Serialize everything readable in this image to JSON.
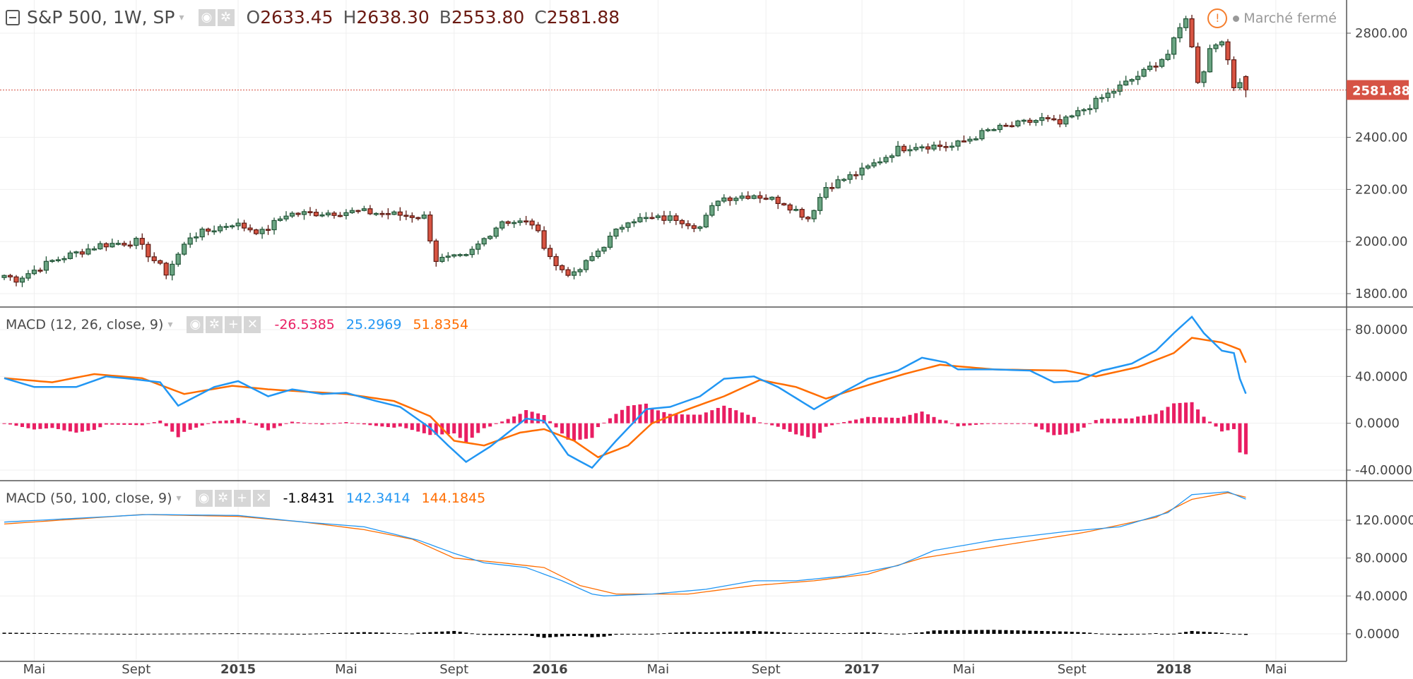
{
  "header": {
    "symbol_title": "S&P 500, 1W, SP",
    "ohlc": [
      {
        "key": "O",
        "value": "2633.45"
      },
      {
        "key": "H",
        "value": "2638.30"
      },
      {
        "key": "B",
        "value": "2553.80"
      },
      {
        "key": "C",
        "value": "2581.88"
      }
    ],
    "market_status": "Marché fermé",
    "warning_glyph": "!"
  },
  "indicators": [
    {
      "title": "MACD (12, 26, close, 9)",
      "hist": "-26.5385",
      "macd": "25.2969",
      "signal": "51.8354",
      "hist_color": "#e91e63"
    },
    {
      "title": "MACD (50, 100, close, 9)",
      "hist": "-1.8431",
      "macd": "142.3414",
      "signal": "144.1845",
      "hist_color": "#000000"
    }
  ],
  "buttons": {
    "eye": "◉",
    "gear": "✲",
    "plus": "+",
    "close": "✕",
    "caret": "▾"
  },
  "colors": {
    "up": "#6ba583",
    "up_border": "#225437",
    "down": "#d75442",
    "down_border": "#5b1a13",
    "macd": "#2196f3",
    "signal": "#ff6d00",
    "last_price": "#d65345"
  },
  "chart_data": {
    "type": "candlestick",
    "last_price_label": "2581.88",
    "last_price": 2581.88,
    "last_candle": {
      "open": 2633.45,
      "high": 2638.3,
      "low": 2553.8,
      "close": 2581.88
    },
    "price_ticks": [
      "2800.00",
      "2400.00",
      "2200.00",
      "2000.00",
      "1800.00"
    ],
    "price_tick_values": [
      2800,
      2400,
      2200,
      2000,
      1800
    ],
    "price_range": [
      1800,
      2800
    ],
    "weeks": 209,
    "close_keypoints": [
      [
        0,
        1870
      ],
      [
        2,
        1855
      ],
      [
        8,
        1925
      ],
      [
        16,
        1987
      ],
      [
        22,
        2000
      ],
      [
        27,
        1880
      ],
      [
        31,
        2020
      ],
      [
        38,
        2070
      ],
      [
        43,
        2035
      ],
      [
        47,
        2105
      ],
      [
        59,
        2115
      ],
      [
        70,
        2095
      ],
      [
        72,
        1930
      ],
      [
        77,
        1940
      ],
      [
        83,
        2080
      ],
      [
        88,
        2070
      ],
      [
        92,
        1905
      ],
      [
        95,
        1870
      ],
      [
        98,
        1940
      ],
      [
        104,
        2085
      ],
      [
        112,
        2090
      ],
      [
        116,
        2055
      ],
      [
        119,
        2165
      ],
      [
        125,
        2180
      ],
      [
        130,
        2150
      ],
      [
        134,
        2090
      ],
      [
        137,
        2210
      ],
      [
        143,
        2270
      ],
      [
        149,
        2355
      ],
      [
        152,
        2370
      ],
      [
        158,
        2365
      ],
      [
        164,
        2425
      ],
      [
        173,
        2470
      ],
      [
        176,
        2450
      ],
      [
        185,
        2580
      ],
      [
        190,
        2650
      ],
      [
        194,
        2720
      ],
      [
        197,
        2865
      ],
      [
        199,
        2620
      ],
      [
        200,
        2660
      ],
      [
        201,
        2740
      ],
      [
        203,
        2780
      ],
      [
        205,
        2590
      ],
      [
        206,
        2610
      ],
      [
        207,
        2633.45
      ]
    ],
    "time_labels": [
      {
        "label": "Mai",
        "week": 5
      },
      {
        "label": "Sept",
        "week": 22
      },
      {
        "label": "2015",
        "week": 39
      },
      {
        "label": "Mai",
        "week": 57
      },
      {
        "label": "Sept",
        "week": 75
      },
      {
        "label": "2016",
        "week": 91
      },
      {
        "label": "Mai",
        "week": 109
      },
      {
        "label": "Sept",
        "week": 127
      },
      {
        "label": "2017",
        "week": 143
      },
      {
        "label": "Mai",
        "week": 160
      },
      {
        "label": "Sept",
        "week": 178
      },
      {
        "label": "2018",
        "week": 195
      },
      {
        "label": "Mai",
        "week": 212
      }
    ],
    "macd1": {
      "ticks": [
        "80.0000",
        "40.0000",
        "0.0000",
        "-40.0000"
      ],
      "tick_values": [
        80,
        40,
        0,
        -40
      ],
      "range": [
        -40,
        80
      ],
      "macd": [
        [
          0,
          38.5
        ],
        [
          5,
          31
        ],
        [
          12,
          31
        ],
        [
          17,
          40
        ],
        [
          21,
          38
        ],
        [
          26,
          35
        ],
        [
          29,
          15
        ],
        [
          35,
          31
        ],
        [
          39,
          36
        ],
        [
          44,
          23
        ],
        [
          48,
          29
        ],
        [
          53,
          25
        ],
        [
          57,
          26
        ],
        [
          62,
          19
        ],
        [
          66,
          14
        ],
        [
          71,
          -4
        ],
        [
          74,
          -19
        ],
        [
          77,
          -33
        ],
        [
          81,
          -20
        ],
        [
          87,
          4
        ],
        [
          90,
          2
        ],
        [
          94,
          -27
        ],
        [
          98,
          -38
        ],
        [
          102,
          -15
        ],
        [
          107,
          12
        ],
        [
          111,
          14
        ],
        [
          116,
          23
        ],
        [
          120,
          38
        ],
        [
          125,
          40
        ],
        [
          129,
          31
        ],
        [
          135,
          12
        ],
        [
          140,
          27
        ],
        [
          144,
          38
        ],
        [
          149,
          45
        ],
        [
          153,
          56
        ],
        [
          157,
          52
        ],
        [
          159,
          46
        ],
        [
          165,
          46
        ],
        [
          171,
          45
        ],
        [
          175,
          35
        ],
        [
          179,
          36
        ],
        [
          183,
          45
        ],
        [
          188,
          51
        ],
        [
          192,
          62
        ],
        [
          195,
          77
        ],
        [
          198,
          91
        ],
        [
          200,
          77
        ],
        [
          203,
          62
        ],
        [
          205,
          60
        ],
        [
          206,
          38
        ],
        [
          207,
          25.3
        ]
      ],
      "signal": [
        [
          0,
          38.5
        ],
        [
          8,
          35
        ],
        [
          15,
          42
        ],
        [
          23,
          38.5
        ],
        [
          30,
          25
        ],
        [
          38,
          32
        ],
        [
          44,
          29
        ],
        [
          50,
          27
        ],
        [
          57,
          25
        ],
        [
          65,
          19
        ],
        [
          71,
          6
        ],
        [
          75,
          -15
        ],
        [
          80,
          -19
        ],
        [
          86,
          -8
        ],
        [
          90,
          -5
        ],
        [
          95,
          -15
        ],
        [
          99,
          -29
        ],
        [
          104,
          -19
        ],
        [
          108,
          0
        ],
        [
          114,
          12
        ],
        [
          120,
          23
        ],
        [
          126,
          37
        ],
        [
          132,
          31
        ],
        [
          137,
          21
        ],
        [
          143,
          31
        ],
        [
          150,
          42
        ],
        [
          156,
          50
        ],
        [
          165,
          46
        ],
        [
          177,
          45
        ],
        [
          182,
          40
        ],
        [
          189,
          48
        ],
        [
          195,
          60
        ],
        [
          198,
          73
        ],
        [
          203,
          69
        ],
        [
          206,
          63
        ],
        [
          207,
          51.8
        ]
      ]
    },
    "macd2": {
      "ticks": [
        "120.0000",
        "80.0000",
        "40.0000",
        "0.0000"
      ],
      "tick_values": [
        120,
        80,
        40,
        0
      ],
      "range": [
        -8,
        150
      ],
      "macd": [
        [
          0,
          118
        ],
        [
          15,
          123
        ],
        [
          24,
          126
        ],
        [
          39,
          125
        ],
        [
          50,
          118
        ],
        [
          60,
          113
        ],
        [
          69,
          99
        ],
        [
          75,
          85
        ],
        [
          80,
          75
        ],
        [
          87,
          70
        ],
        [
          93,
          56
        ],
        [
          98,
          42
        ],
        [
          100,
          40
        ],
        [
          108,
          42
        ],
        [
          117,
          47
        ],
        [
          125,
          56
        ],
        [
          132,
          56
        ],
        [
          140,
          61
        ],
        [
          149,
          72
        ],
        [
          155,
          88
        ],
        [
          165,
          99
        ],
        [
          177,
          108
        ],
        [
          186,
          113
        ],
        [
          194,
          128
        ],
        [
          198,
          147
        ],
        [
          204,
          150
        ],
        [
          207,
          142.3
        ]
      ],
      "signal": [
        [
          0,
          116
        ],
        [
          23,
          126
        ],
        [
          39,
          124
        ],
        [
          50,
          118
        ],
        [
          60,
          110
        ],
        [
          68,
          100
        ],
        [
          75,
          80
        ],
        [
          83,
          75
        ],
        [
          90,
          70
        ],
        [
          96,
          51
        ],
        [
          102,
          42
        ],
        [
          114,
          42
        ],
        [
          125,
          51
        ],
        [
          135,
          56
        ],
        [
          144,
          63
        ],
        [
          153,
          80
        ],
        [
          165,
          92
        ],
        [
          180,
          107
        ],
        [
          192,
          123
        ],
        [
          198,
          142
        ],
        [
          204,
          149
        ],
        [
          207,
          144.2
        ]
      ]
    }
  }
}
